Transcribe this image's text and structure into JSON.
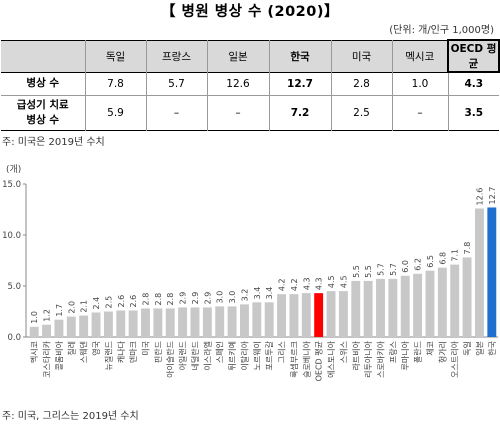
{
  "title": "【 병원 병상 수 (2020)】",
  "unit_note": "(단위: 개/인구 1,000명)",
  "table": {
    "columns": [
      "",
      "독일",
      "프랑스",
      "일본",
      "한국",
      "미국",
      "멕시코",
      "OECD 평균"
    ],
    "rows": [
      {
        "label": "병상 수",
        "values": [
          "7.8",
          "5.7",
          "12.6",
          "12.7",
          "2.8",
          "1.0",
          "4.3"
        ]
      },
      {
        "label": "급성기 치료 병상 수",
        "label_lines": [
          "급성기 치료",
          "병상 수"
        ],
        "values": [
          "5.9",
          "–",
          "–",
          "7.2",
          "2.5",
          "–",
          "3.5"
        ]
      }
    ]
  },
  "table_note": "주: 미국은 2019년 수치",
  "chart_note": "주: 미국, 그리스는 2019년 수치",
  "chart_data": {
    "type": "bar",
    "ylabel": "(개)",
    "ylim": [
      0,
      15
    ],
    "yticks": [
      "0.0",
      "5.0",
      "10.0",
      "15.0"
    ],
    "grid": false,
    "legend": "none",
    "colors": {
      "default": "#c8c8c8",
      "oecd": "#ff0000",
      "korea": "#1f6fd1"
    },
    "categories": [
      "멕시코",
      "코스타리카",
      "콜롬비아",
      "칠레",
      "스웨덴",
      "영국",
      "뉴질랜드",
      "캐나다",
      "덴마크",
      "미국",
      "핀란드",
      "아이슬란드",
      "아일랜드",
      "네덜란드",
      "이스라엘",
      "스페인",
      "튀르키예",
      "이탈리아",
      "노르웨이",
      "포르투갈",
      "그리스",
      "룩셈부르크",
      "슬로베니아",
      "OECD 평균",
      "에스토니아",
      "스위스",
      "라트비아",
      "리투아니아",
      "스로바키아",
      "프랑스",
      "루마니아",
      "폴란드",
      "체코",
      "헝가리",
      "오스트리아",
      "독일",
      "일본",
      "한국"
    ],
    "values": [
      1.0,
      1.2,
      1.7,
      2.0,
      2.1,
      2.4,
      2.5,
      2.6,
      2.6,
      2.8,
      2.8,
      2.8,
      2.9,
      2.9,
      2.9,
      3.0,
      3.0,
      3.2,
      3.4,
      3.4,
      4.2,
      4.2,
      4.3,
      4.3,
      4.5,
      4.5,
      5.5,
      5.5,
      5.7,
      5.7,
      6.0,
      6.2,
      6.5,
      6.8,
      7.1,
      7.8,
      12.6,
      12.7
    ],
    "data_labels": [
      "1.0",
      "1.2",
      "1.7",
      "2.0",
      "2.1",
      "2.4",
      "2.5",
      "2.6",
      "2.6",
      "2.8",
      "2.8",
      "2.8",
      "2.9",
      "2.9",
      "2.9",
      "3.0",
      "3.0",
      "3.2",
      "3.4",
      "3.4",
      "4.2",
      "4.2",
      "4.3",
      "4.3",
      "4.5",
      "4.5",
      "5.5",
      "5.5",
      "5.7",
      "5.7",
      "6.0",
      "6.2",
      "6.5",
      "6.8",
      "7.1",
      "7.8",
      "12.6",
      "12.7"
    ],
    "highlight": {
      "OECD 평균": "oecd",
      "한국": "korea"
    }
  }
}
